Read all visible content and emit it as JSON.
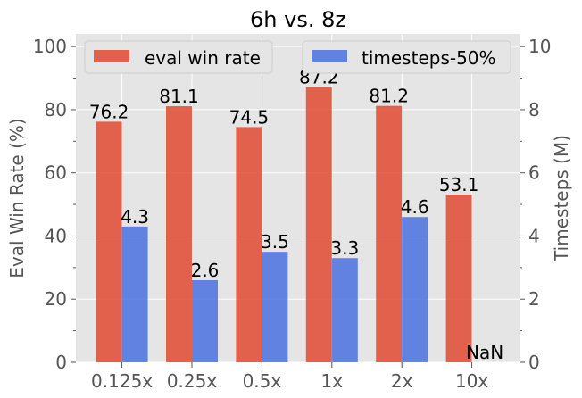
{
  "chart_data": {
    "type": "bar",
    "title": "6h vs. 8z",
    "categories": [
      "0.125x",
      "0.25x",
      "0.5x",
      "1x",
      "2x",
      "10x"
    ],
    "series": [
      {
        "name": "eval win rate",
        "axis": "left",
        "color": "#e24a33",
        "values": [
          76.2,
          81.1,
          74.5,
          87.2,
          81.2,
          53.1
        ],
        "labels": [
          "76.2",
          "81.1",
          "74.5",
          "87.2",
          "81.2",
          "53.1"
        ]
      },
      {
        "name": "timesteps-50%",
        "axis": "right",
        "color": "#4169e1",
        "values": [
          4.3,
          2.6,
          3.5,
          3.3,
          4.6,
          null
        ],
        "labels": [
          "4.3",
          "2.6",
          "3.5",
          "3.3",
          "4.6",
          "NaN"
        ]
      }
    ],
    "ylabel": "Eval Win Rate (%)",
    "y2label": "Timesteps (M)",
    "ylim": [
      0,
      104
    ],
    "y2lim": [
      0,
      10.4
    ],
    "yticks": [
      0,
      20,
      40,
      60,
      80,
      100
    ],
    "y2ticks": [
      0,
      2,
      4,
      6,
      8,
      10
    ],
    "grid": true,
    "legend": [
      {
        "label": "eval win rate",
        "placement": "top-left"
      },
      {
        "label": "timesteps-50%",
        "placement": "top-right"
      }
    ]
  }
}
